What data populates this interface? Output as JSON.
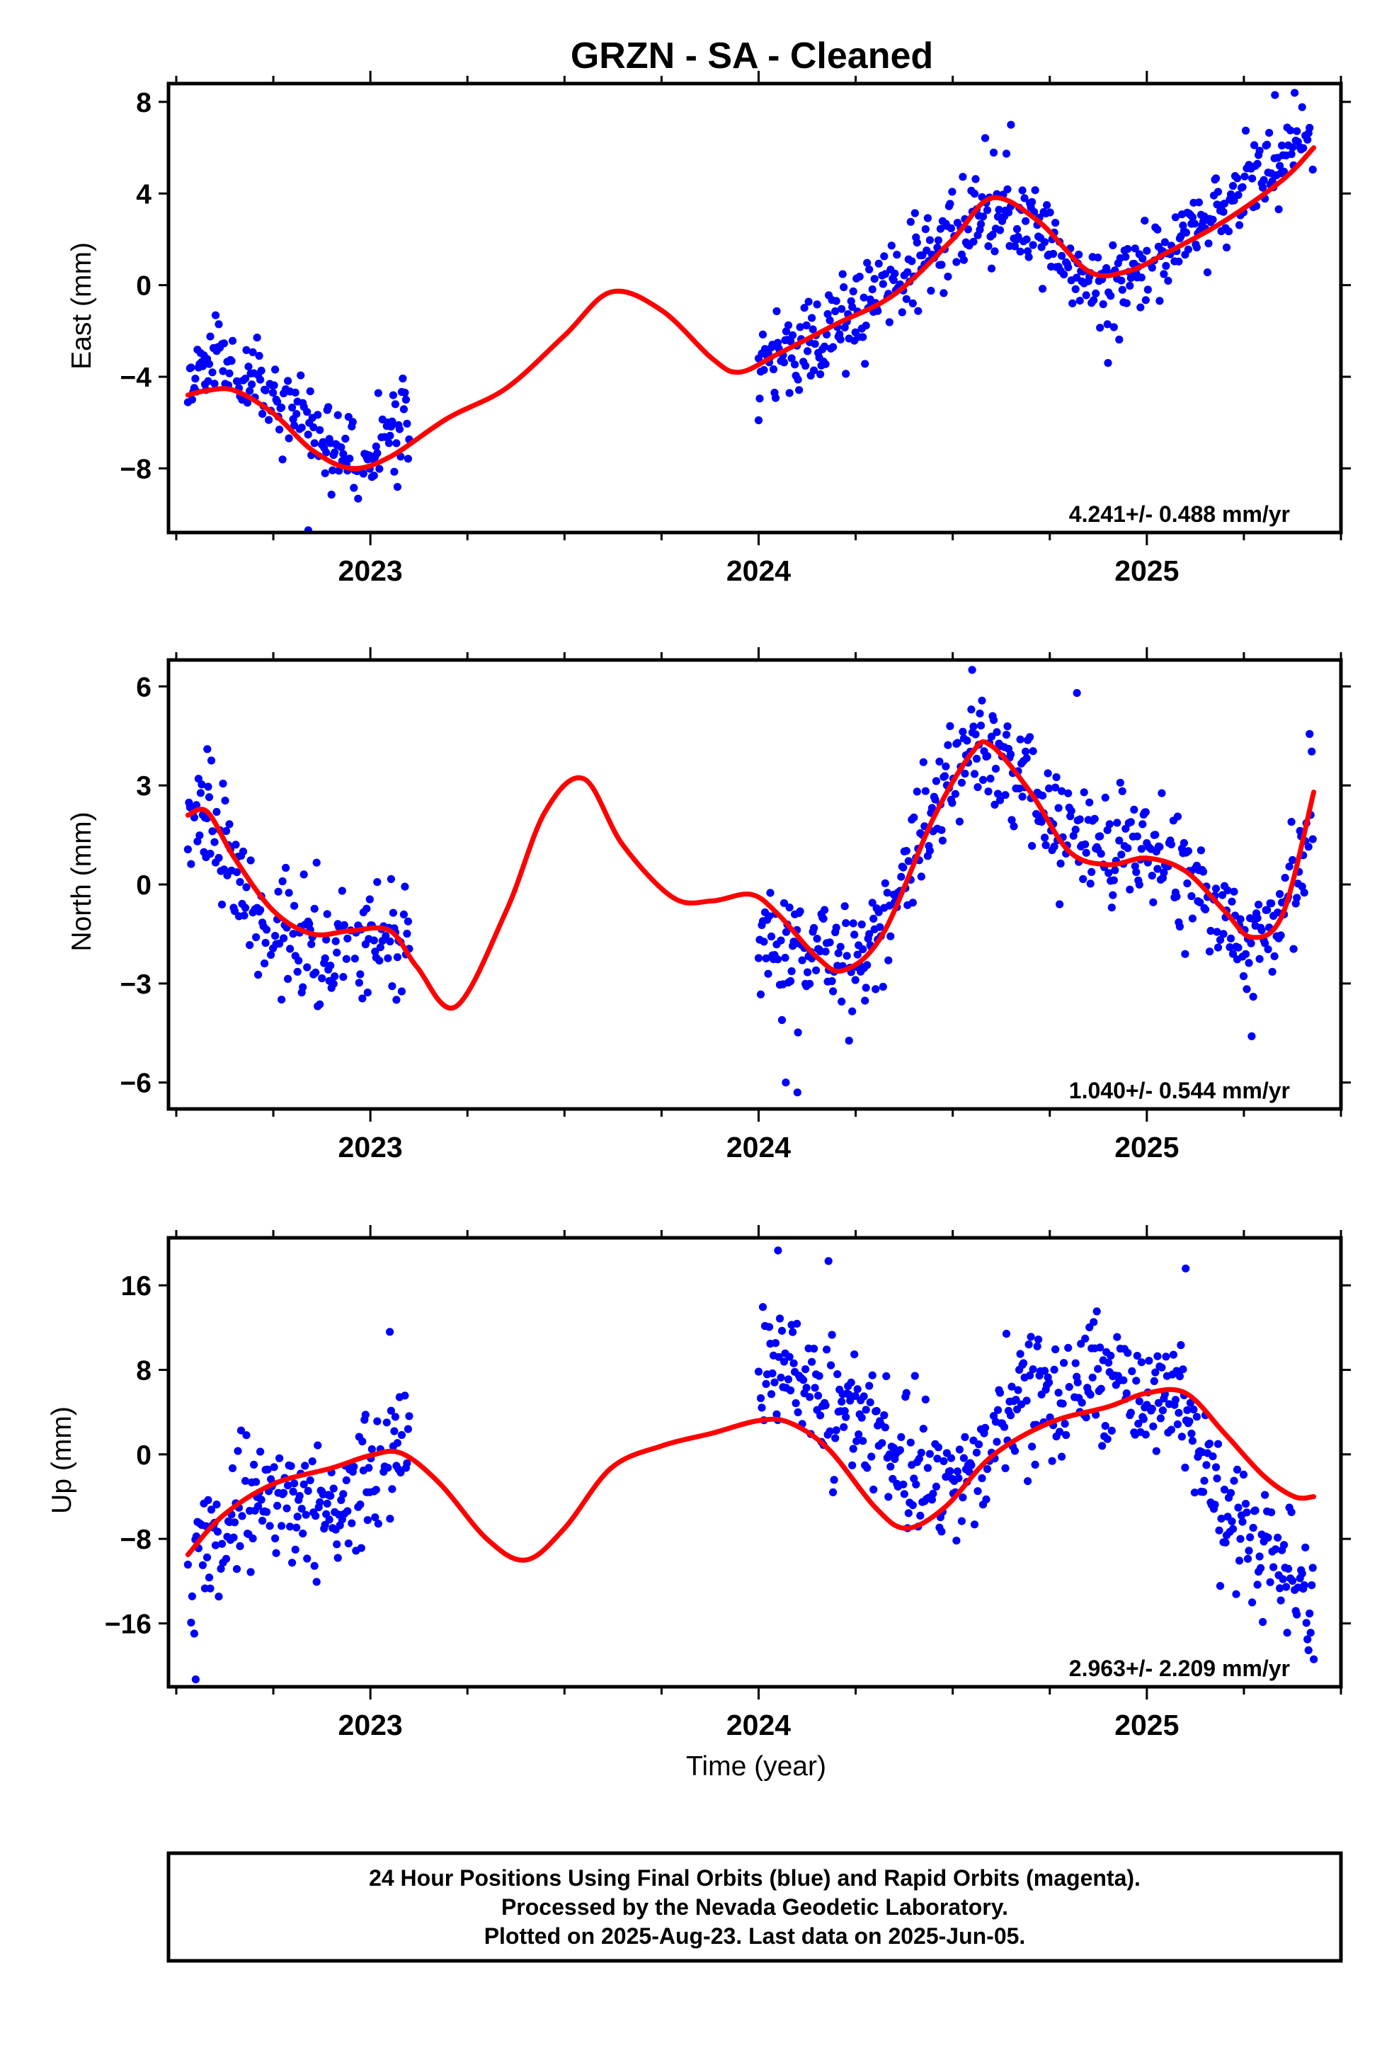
{
  "title": "GRZN  - SA - Cleaned",
  "colors": {
    "points": "#0000ff",
    "fit": "#ff0000",
    "frame": "#000000"
  },
  "xlabel": "Time (year)",
  "x_tick_labels": [
    "2023",
    "2024",
    "2025"
  ],
  "footer": {
    "line1": "24 Hour Positions Using Final Orbits (blue) and Rapid Orbits (magenta).",
    "line2": "Processed by the Nevada Geodetic Laboratory.",
    "line3": "Plotted on 2025-Aug-23. Last data on 2025-Jun-05."
  },
  "chart_data": [
    {
      "type": "scatter",
      "ylabel": "East (mm)",
      "rate_label": "4.241+/- 0.488 mm/yr",
      "xlim": [
        2022.48,
        2025.5
      ],
      "ylim": [
        -10.8,
        8.8
      ],
      "yticks": [
        -8,
        -4,
        0,
        4,
        8
      ],
      "ytick_labels": [
        "−8",
        "−4",
        "0",
        "4",
        "8"
      ],
      "x_data_ranges": [
        [
          2022.53,
          2023.1
        ],
        [
          2024.0,
          2025.43
        ]
      ],
      "points": {
        "mean": [
          [
            2022.53,
            -4.2
          ],
          [
            2022.6,
            -3.0
          ],
          [
            2022.7,
            -4.5
          ],
          [
            2022.8,
            -5.5
          ],
          [
            2022.9,
            -7.0
          ],
          [
            2023.0,
            -7.5
          ],
          [
            2023.1,
            -5.5
          ],
          [
            2024.0,
            -3.5
          ],
          [
            2024.15,
            -2.5
          ],
          [
            2024.3,
            -0.5
          ],
          [
            2024.45,
            1.5
          ],
          [
            2024.6,
            3.0
          ],
          [
            2024.72,
            2.5
          ],
          [
            2024.85,
            0.0
          ],
          [
            2025.0,
            0.8
          ],
          [
            2025.15,
            3.0
          ],
          [
            2025.3,
            5.0
          ],
          [
            2025.43,
            6.8
          ]
        ],
        "noise": 1.2,
        "outliers": [
          [
            2022.84,
            -10.7
          ],
          [
            2024.65,
            7.0
          ],
          [
            2025.33,
            8.3
          ],
          [
            2024.9,
            -3.4
          ],
          [
            2024.0,
            -5.9
          ]
        ]
      },
      "fit_curve": [
        [
          2022.53,
          -4.8
        ],
        [
          2022.58,
          -4.6
        ],
        [
          2022.65,
          -4.6
        ],
        [
          2022.75,
          -5.6
        ],
        [
          2022.85,
          -7.2
        ],
        [
          2022.95,
          -8.0
        ],
        [
          2023.05,
          -7.5
        ],
        [
          2023.2,
          -5.8
        ],
        [
          2023.35,
          -4.5
        ],
        [
          2023.5,
          -2.2
        ],
        [
          2023.62,
          -0.3
        ],
        [
          2023.75,
          -1.1
        ],
        [
          2023.88,
          -3.2
        ],
        [
          2023.95,
          -3.8
        ],
        [
          2024.05,
          -3.0
        ],
        [
          2024.2,
          -1.7
        ],
        [
          2024.35,
          -0.4
        ],
        [
          2024.5,
          2.0
        ],
        [
          2024.6,
          3.8
        ],
        [
          2024.72,
          2.8
        ],
        [
          2024.85,
          0.6
        ],
        [
          2024.95,
          0.6
        ],
        [
          2025.05,
          1.4
        ],
        [
          2025.2,
          2.8
        ],
        [
          2025.35,
          4.6
        ],
        [
          2025.43,
          6.0
        ]
      ],
      "seed": 11
    },
    {
      "type": "scatter",
      "ylabel": "North (mm)",
      "rate_label": "1.040+/- 0.544 mm/yr",
      "xlim": [
        2022.48,
        2025.5
      ],
      "ylim": [
        -6.8,
        6.8
      ],
      "yticks": [
        -6,
        -3,
        0,
        3,
        6
      ],
      "ytick_labels": [
        "−6",
        "−3",
        "0",
        "3",
        "6"
      ],
      "x_data_ranges": [
        [
          2022.53,
          2023.1
        ],
        [
          2024.0,
          2025.43
        ]
      ],
      "points": {
        "mean": [
          [
            2022.53,
            2.2
          ],
          [
            2022.6,
            1.5
          ],
          [
            2022.7,
            -0.8
          ],
          [
            2022.8,
            -1.8
          ],
          [
            2022.9,
            -2.2
          ],
          [
            2023.0,
            -1.5
          ],
          [
            2023.1,
            -2.0
          ],
          [
            2024.0,
            -1.5
          ],
          [
            2024.12,
            -2.0
          ],
          [
            2024.25,
            -2.6
          ],
          [
            2024.35,
            -0.5
          ],
          [
            2024.45,
            2.5
          ],
          [
            2024.55,
            4.5
          ],
          [
            2024.65,
            3.0
          ],
          [
            2024.78,
            1.8
          ],
          [
            2024.9,
            1.0
          ],
          [
            2025.05,
            1.0
          ],
          [
            2025.15,
            -0.5
          ],
          [
            2025.25,
            -1.5
          ],
          [
            2025.35,
            -1.0
          ],
          [
            2025.43,
            2.2
          ]
        ],
        "noise": 1.1,
        "outliers": [
          [
            2022.58,
            4.1
          ],
          [
            2024.55,
            6.5
          ],
          [
            2024.1,
            -6.3
          ],
          [
            2024.07,
            -6.0
          ],
          [
            2024.82,
            5.8
          ],
          [
            2025.27,
            -4.6
          ]
        ]
      },
      "fit_curve": [
        [
          2022.53,
          2.1
        ],
        [
          2022.58,
          2.2
        ],
        [
          2022.65,
          0.8
        ],
        [
          2022.75,
          -0.8
        ],
        [
          2022.85,
          -1.5
        ],
        [
          2022.95,
          -1.4
        ],
        [
          2023.05,
          -1.4
        ],
        [
          2023.12,
          -2.5
        ],
        [
          2023.22,
          -3.7
        ],
        [
          2023.35,
          -0.8
        ],
        [
          2023.45,
          2.2
        ],
        [
          2023.55,
          3.2
        ],
        [
          2023.65,
          1.2
        ],
        [
          2023.78,
          -0.4
        ],
        [
          2023.88,
          -0.5
        ],
        [
          2023.98,
          -0.3
        ],
        [
          2024.05,
          -0.9
        ],
        [
          2024.15,
          -2.2
        ],
        [
          2024.22,
          -2.6
        ],
        [
          2024.32,
          -1.5
        ],
        [
          2024.45,
          2.0
        ],
        [
          2024.55,
          4.0
        ],
        [
          2024.6,
          4.2
        ],
        [
          2024.7,
          2.8
        ],
        [
          2024.8,
          1.0
        ],
        [
          2024.9,
          0.6
        ],
        [
          2025.0,
          0.8
        ],
        [
          2025.1,
          0.4
        ],
        [
          2025.2,
          -0.8
        ],
        [
          2025.27,
          -1.6
        ],
        [
          2025.35,
          -0.9
        ],
        [
          2025.43,
          2.8
        ]
      ],
      "seed": 23
    },
    {
      "type": "scatter",
      "ylabel": "Up (mm)",
      "rate_label": "2.963+/- 2.209 mm/yr",
      "xlim": [
        2022.48,
        2025.5
      ],
      "ylim": [
        -22,
        20.5
      ],
      "yticks": [
        -16,
        -8,
        0,
        8,
        16
      ],
      "ytick_labels": [
        "−16",
        "−8",
        "0",
        "8",
        "16"
      ],
      "x_data_ranges": [
        [
          2022.53,
          2023.1
        ],
        [
          2024.0,
          2025.43
        ]
      ],
      "points": {
        "mean": [
          [
            2022.53,
            -12.0
          ],
          [
            2022.6,
            -8.0
          ],
          [
            2022.7,
            -4.0
          ],
          [
            2022.8,
            -5.5
          ],
          [
            2022.9,
            -5.0
          ],
          [
            2023.0,
            -2.0
          ],
          [
            2023.1,
            1.0
          ],
          [
            2024.0,
            8.0
          ],
          [
            2024.12,
            7.0
          ],
          [
            2024.25,
            4.0
          ],
          [
            2024.35,
            0.0
          ],
          [
            2024.45,
            -2.5
          ],
          [
            2024.55,
            -1.0
          ],
          [
            2024.65,
            4.0
          ],
          [
            2024.78,
            6.0
          ],
          [
            2024.9,
            7.5
          ],
          [
            2025.0,
            5.0
          ],
          [
            2025.1,
            4.0
          ],
          [
            2025.2,
            -5.0
          ],
          [
            2025.3,
            -9.0
          ],
          [
            2025.43,
            -13.0
          ]
        ],
        "noise": 3.6,
        "outliers": [
          [
            2022.55,
            -21.3
          ],
          [
            2024.05,
            19.3
          ],
          [
            2024.18,
            18.3
          ],
          [
            2023.05,
            11.6
          ],
          [
            2025.1,
            17.6
          ],
          [
            2025.43,
            -19.4
          ]
        ]
      },
      "fit_curve": [
        [
          2022.53,
          -9.5
        ],
        [
          2022.62,
          -5.8
        ],
        [
          2022.75,
          -2.8
        ],
        [
          2022.9,
          -1.3
        ],
        [
          2023.0,
          -0.1
        ],
        [
          2023.08,
          0.1
        ],
        [
          2023.18,
          -2.8
        ],
        [
          2023.3,
          -8.0
        ],
        [
          2023.4,
          -10.0
        ],
        [
          2023.5,
          -7.0
        ],
        [
          2023.62,
          -1.3
        ],
        [
          2023.75,
          0.8
        ],
        [
          2023.88,
          2.0
        ],
        [
          2024.0,
          3.2
        ],
        [
          2024.08,
          3.0
        ],
        [
          2024.18,
          0.5
        ],
        [
          2024.3,
          -5.0
        ],
        [
          2024.38,
          -7.0
        ],
        [
          2024.48,
          -5.0
        ],
        [
          2024.6,
          -0.2
        ],
        [
          2024.75,
          3.0
        ],
        [
          2024.9,
          4.5
        ],
        [
          2025.0,
          5.8
        ],
        [
          2025.1,
          5.8
        ],
        [
          2025.2,
          2.0
        ],
        [
          2025.3,
          -2.0
        ],
        [
          2025.38,
          -4.0
        ],
        [
          2025.43,
          -4.0
        ]
      ],
      "seed": 37
    }
  ]
}
